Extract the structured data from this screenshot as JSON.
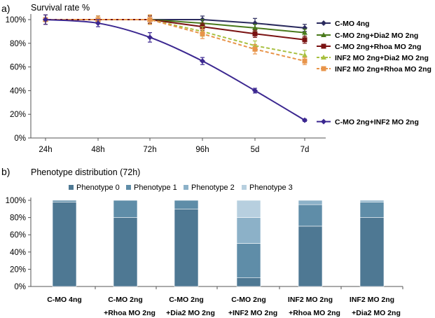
{
  "chart_data": [
    {
      "type": "line",
      "panel_label": "a)",
      "title": "Survival rate %",
      "categories": [
        "24h",
        "48h",
        "72h",
        "96h",
        "5d",
        "7d"
      ],
      "ylim": [
        0,
        100
      ],
      "yticks": [
        0,
        20,
        40,
        60,
        80,
        100
      ],
      "ytick_labels": [
        "0%",
        "20%",
        "40%",
        "60%",
        "80%",
        "100%"
      ],
      "grid": false,
      "legend": "right",
      "series": [
        {
          "name": "C-MO 4ng",
          "color": "#2b2b5e",
          "marker": "diamond",
          "dashed": false,
          "values": [
            100,
            100,
            100,
            100,
            97,
            93
          ],
          "errors": [
            4,
            3,
            3,
            3,
            4,
            3
          ]
        },
        {
          "name": "C-MO 2ng+Dia2 MO 2ng",
          "color": "#4a7a1c",
          "marker": "triangle",
          "dashed": false,
          "values": [
            100,
            100,
            100,
            97,
            93,
            89
          ],
          "errors": [
            4,
            3,
            3,
            3,
            3,
            3
          ]
        },
        {
          "name": "C-MO 2ng+Rhoa MO 2ng",
          "color": "#7a1212",
          "marker": "square",
          "dashed": false,
          "values": [
            100,
            100,
            100,
            94,
            88,
            83
          ],
          "errors": [
            4,
            3,
            3,
            3,
            3,
            3
          ]
        },
        {
          "name": "INF2 MO 2ng+Dia2 MO 2ng",
          "color": "#a8c040",
          "marker": "triangle",
          "dashed": true,
          "values": [
            100,
            100,
            100,
            90,
            78,
            70
          ],
          "errors": [
            4,
            3,
            4,
            4,
            4,
            4
          ]
        },
        {
          "name": "INF2 MO 2ng+Rhoa MO 2ng",
          "color": "#e8944a",
          "marker": "square",
          "dashed": true,
          "values": [
            100,
            100,
            100,
            88,
            75,
            65
          ],
          "errors": [
            4,
            3,
            4,
            4,
            4,
            3
          ]
        },
        {
          "name": "C-MO 2ng+INF2 MO 2ng",
          "color": "#3b2790",
          "marker": "diamond",
          "dashed": false,
          "values": [
            100,
            97,
            85,
            65,
            40,
            15
          ],
          "errors": [
            4,
            3,
            4,
            3,
            2,
            1
          ]
        }
      ]
    },
    {
      "type": "bar",
      "stacked": true,
      "panel_label": "b)",
      "title": "Phenotype distribution (72h)",
      "categories": [
        [
          "C-MO 4ng",
          ""
        ],
        [
          "C-MO 2ng",
          "+Rhoa MO 2ng"
        ],
        [
          "C-MO 2ng",
          "+Dia2 MO 2ng"
        ],
        [
          "C-MO 2ng",
          "+INF2 MO 2ng"
        ],
        [
          "INF2 MO 2ng",
          "+Rhoa MO 2ng"
        ],
        [
          "INF2 MO 2ng",
          "+Dia2 MO 2ng"
        ]
      ],
      "ylim": [
        0,
        100
      ],
      "yticks": [
        0,
        20,
        40,
        60,
        80,
        100
      ],
      "ytick_labels": [
        "0%",
        "20%",
        "40%",
        "60%",
        "80%",
        "100%"
      ],
      "legend": "top",
      "series": [
        {
          "name": "Phenotype 0",
          "color": "#4e7893",
          "values": [
            98,
            80,
            90,
            10,
            70,
            80
          ]
        },
        {
          "name": "Phenotype 1",
          "color": "#5f8da8",
          "values": [
            2,
            20,
            10,
            40,
            25,
            18
          ]
        },
        {
          "name": "Phenotype 2",
          "color": "#8cb1c8",
          "values": [
            0,
            0,
            0,
            30,
            5,
            2
          ]
        },
        {
          "name": "Phenotype 3",
          "color": "#b7cfdf",
          "values": [
            0,
            0,
            0,
            20,
            0,
            0
          ]
        }
      ]
    }
  ]
}
